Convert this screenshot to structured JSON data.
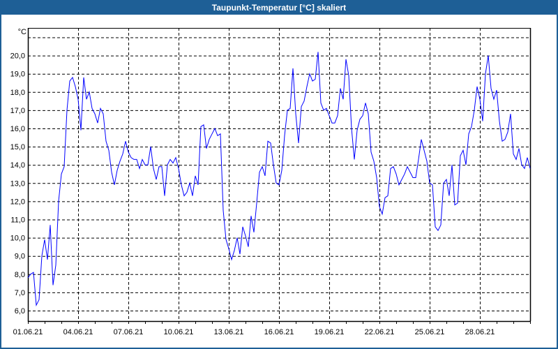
{
  "window": {
    "title": "Taupunkt-Temperatur [°C] skaliert"
  },
  "colors": {
    "title_bar": "#1e5f96",
    "line": "#0000ff",
    "grid": "#000000"
  },
  "chart_data": {
    "type": "line",
    "title": "Taupunkt-Temperatur [°C] skaliert",
    "ylabel": "°C",
    "xlabel": "",
    "ylim": [
      5.43,
      21.5
    ],
    "yticks": [
      6,
      7,
      8,
      9,
      10,
      11,
      12,
      13,
      14,
      15,
      16,
      17,
      18,
      19,
      20
    ],
    "ytick_labels": [
      "6,0",
      "7,0",
      "8,0",
      "9,0",
      "10,0",
      "11,0",
      "12,0",
      "13,0",
      "14,0",
      "15,0",
      "16,0",
      "17,0",
      "18,0",
      "19,0",
      "20,0"
    ],
    "ygrid_extra": [
      21
    ],
    "x_start": "01.06.21",
    "x_range_days": [
      0,
      30
    ],
    "xticks_days": [
      0,
      3,
      6,
      9,
      12,
      15,
      18,
      21,
      24,
      27
    ],
    "xtick_labels": [
      "01.06.21",
      "04.06.21",
      "07.06.21",
      "10.06.21",
      "13.06.21",
      "16.06.21",
      "19.06.21",
      "22.06.21",
      "25.06.21",
      "28.06.21"
    ],
    "grid": true,
    "series": [
      {
        "name": "Taupunkt",
        "step_hours": 4,
        "values": [
          7.8,
          8.0,
          8.1,
          6.3,
          6.6,
          9.0,
          9.9,
          8.8,
          10.7,
          7.4,
          8.5,
          12.0,
          13.5,
          13.9,
          17.0,
          18.6,
          18.8,
          18.3,
          17.6,
          15.9,
          18.8,
          17.6,
          18.0,
          17.1,
          16.8,
          16.3,
          17.1,
          16.8,
          15.3,
          14.8,
          13.6,
          12.9,
          13.7,
          14.2,
          14.6,
          15.3,
          14.7,
          14.4,
          14.3,
          14.3,
          13.8,
          14.3,
          14.0,
          14.0,
          15.0,
          13.8,
          13.2,
          13.9,
          13.9,
          12.3,
          14.0,
          14.3,
          14.1,
          14.4,
          13.8,
          12.9,
          12.3,
          12.5,
          13.0,
          12.3,
          13.4,
          12.9,
          16.1,
          16.2,
          14.9,
          15.4,
          15.7,
          16.0,
          15.6,
          15.7,
          11.5,
          9.9,
          9.4,
          8.8,
          9.3,
          10.0,
          9.1,
          10.6,
          10.1,
          9.5,
          11.2,
          10.3,
          11.9,
          13.6,
          13.9,
          13.4,
          15.3,
          15.2,
          14.0,
          13.0,
          12.9,
          13.7,
          15.6,
          17.0,
          17.1,
          19.3,
          16.8,
          15.2,
          17.2,
          17.5,
          18.3,
          19.0,
          18.6,
          18.7,
          20.2,
          17.4,
          17.0,
          17.1,
          16.7,
          16.3,
          16.3,
          16.7,
          18.2,
          17.6,
          19.8,
          18.9,
          16.0,
          14.3,
          15.9,
          16.5,
          16.7,
          17.4,
          16.8,
          14.7,
          14.2,
          13.3,
          11.7,
          11.3,
          12.2,
          12.3,
          13.8,
          13.9,
          13.5,
          12.9,
          13.2,
          13.5,
          13.9,
          13.6,
          13.3,
          13.3,
          14.3,
          15.4,
          14.8,
          14.2,
          13.0,
          12.9,
          10.6,
          10.4,
          10.7,
          13.0,
          13.2,
          12.3,
          14.0,
          11.8,
          11.9,
          14.5,
          14.8,
          14.0,
          15.7,
          16.1,
          17.0,
          18.3,
          17.6,
          16.4,
          19.0,
          20.0,
          18.2,
          17.6,
          18.1,
          16.4,
          15.3,
          15.4,
          15.8,
          16.8,
          14.6,
          14.3,
          14.9,
          14.0,
          13.8,
          14.4,
          13.8
        ]
      }
    ]
  }
}
